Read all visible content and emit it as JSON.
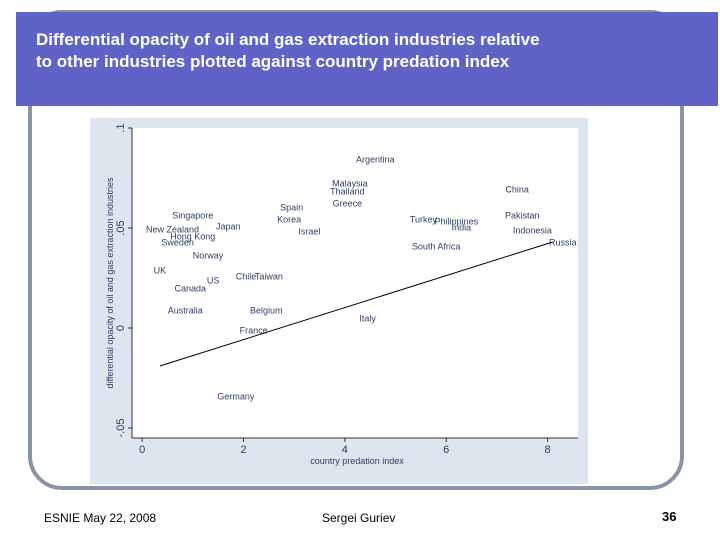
{
  "slide": {
    "title_line1": "Differential opacity of oil and gas extraction industries relative",
    "title_line2": "to other industries plotted against country predation index",
    "footer_left": "ESNIE May 22, 2008",
    "footer_center": "Sergei Guriev",
    "page_number": "36"
  },
  "colors": {
    "title_bar": "#5f63c7",
    "plot_panel": "#dde5ee",
    "frame": "#8a93a5",
    "point_label": "#2e3e66",
    "fit_line": "#000000"
  },
  "chart_data": {
    "type": "scatter",
    "title": "",
    "xlabel": "country predation index",
    "ylabel": "differential opacity of oil and gas extraction industries",
    "xlim": [
      -0.2,
      8.6
    ],
    "ylim": [
      -0.055,
      0.1
    ],
    "xticks": [
      {
        "value": 0,
        "label": "0"
      },
      {
        "value": 2,
        "label": "2"
      },
      {
        "value": 4,
        "label": "4"
      },
      {
        "value": 6,
        "label": "6"
      },
      {
        "value": 8,
        "label": "8"
      }
    ],
    "yticks": [
      {
        "value": -0.05,
        "label": "-.05"
      },
      {
        "value": 0,
        "label": "0"
      },
      {
        "value": 0.05,
        "label": ".05"
      },
      {
        "value": 0.1,
        "label": ".1"
      }
    ],
    "grid": false,
    "legend": "none",
    "fit_line": {
      "x": [
        0.35,
        8.1
      ],
      "y": [
        -0.019,
        0.043
      ]
    },
    "points": [
      {
        "label": "Argentina",
        "x": 4.6,
        "y": 0.084
      },
      {
        "label": "Malaysia",
        "x": 4.1,
        "y": 0.072
      },
      {
        "label": "Thailand",
        "x": 4.05,
        "y": 0.068
      },
      {
        "label": "China",
        "x": 7.4,
        "y": 0.069
      },
      {
        "label": "Greece",
        "x": 4.05,
        "y": 0.062
      },
      {
        "label": "Spain",
        "x": 2.95,
        "y": 0.06
      },
      {
        "label": "Singapore",
        "x": 1.0,
        "y": 0.056
      },
      {
        "label": "Pakistan",
        "x": 7.5,
        "y": 0.056
      },
      {
        "label": "Korea",
        "x": 2.9,
        "y": 0.054
      },
      {
        "label": "Turkey",
        "x": 5.55,
        "y": 0.054
      },
      {
        "label": "Philippines",
        "x": 6.2,
        "y": 0.053
      },
      {
        "label": "India",
        "x": 6.3,
        "y": 0.05
      },
      {
        "label": "Japan",
        "x": 1.7,
        "y": 0.0505
      },
      {
        "label": "Indonesia",
        "x": 7.7,
        "y": 0.0485
      },
      {
        "label": "New Zealand",
        "x": 0.6,
        "y": 0.049
      },
      {
        "label": "Israel",
        "x": 3.3,
        "y": 0.048
      },
      {
        "label": "Hong Kong",
        "x": 1.0,
        "y": 0.0455
      },
      {
        "label": "Sweden",
        "x": 0.7,
        "y": 0.0425
      },
      {
        "label": "South Africa",
        "x": 5.8,
        "y": 0.0405
      },
      {
        "label": "Russia",
        "x": 8.3,
        "y": 0.0425
      },
      {
        "label": "Norway",
        "x": 1.3,
        "y": 0.036
      },
      {
        "label": "UK",
        "x": 0.35,
        "y": 0.0285
      },
      {
        "label": "Chile",
        "x": 2.05,
        "y": 0.0255
      },
      {
        "label": "Taiwan",
        "x": 2.5,
        "y": 0.0255
      },
      {
        "label": "US",
        "x": 1.4,
        "y": 0.0235
      },
      {
        "label": "Canada",
        "x": 0.95,
        "y": 0.0195
      },
      {
        "label": "Belgium",
        "x": 2.45,
        "y": 0.0085
      },
      {
        "label": "Australia",
        "x": 0.85,
        "y": 0.0085
      },
      {
        "label": "Italy",
        "x": 4.45,
        "y": 0.0045
      },
      {
        "label": "France",
        "x": 2.2,
        "y": -0.0015
      },
      {
        "label": "Germany",
        "x": 1.85,
        "y": -0.0345
      }
    ]
  }
}
